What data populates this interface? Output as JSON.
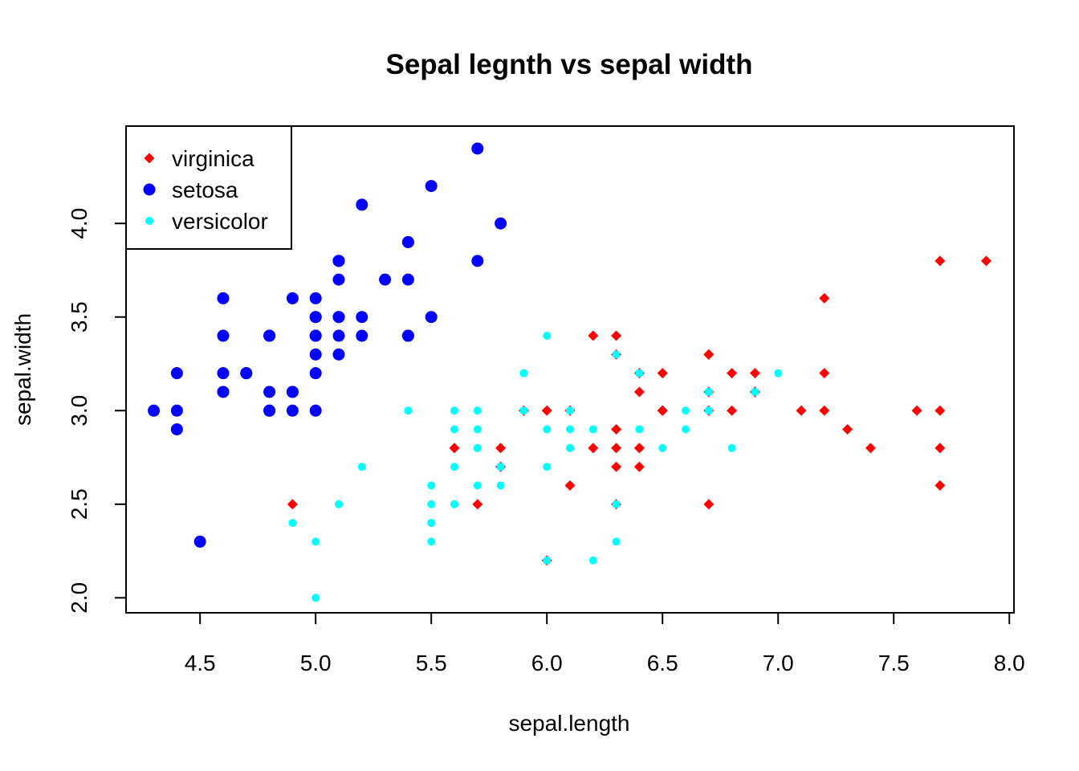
{
  "chart_data": {
    "type": "scatter",
    "title": "Sepal legnth vs sepal width",
    "xlabel": "sepal.length",
    "ylabel": "sepal.width",
    "xlim": [
      4.18,
      8.02
    ],
    "ylim": [
      1.92,
      4.52
    ],
    "x_ticks": [
      "4.5",
      "5.0",
      "5.5",
      "6.0",
      "6.5",
      "7.0",
      "7.5",
      "8.0"
    ],
    "y_ticks": [
      "2.0",
      "2.5",
      "3.0",
      "3.5",
      "4.0"
    ],
    "grid": false,
    "legend_position": "top-left",
    "series": [
      {
        "name": "virginica",
        "color": "#ff0000",
        "marker": "diamond",
        "points": [
          [
            6.3,
            3.3
          ],
          [
            5.8,
            2.7
          ],
          [
            7.1,
            3.0
          ],
          [
            6.3,
            2.9
          ],
          [
            6.5,
            3.0
          ],
          [
            7.6,
            3.0
          ],
          [
            4.9,
            2.5
          ],
          [
            7.3,
            2.9
          ],
          [
            6.7,
            2.5
          ],
          [
            7.2,
            3.6
          ],
          [
            6.5,
            3.2
          ],
          [
            6.4,
            2.7
          ],
          [
            6.8,
            3.0
          ],
          [
            5.7,
            2.5
          ],
          [
            5.8,
            2.8
          ],
          [
            6.4,
            3.2
          ],
          [
            6.5,
            3.0
          ],
          [
            7.7,
            3.8
          ],
          [
            7.7,
            2.6
          ],
          [
            6.0,
            2.2
          ],
          [
            6.9,
            3.2
          ],
          [
            5.6,
            2.8
          ],
          [
            7.7,
            2.8
          ],
          [
            6.3,
            2.7
          ],
          [
            6.7,
            3.3
          ],
          [
            7.2,
            3.2
          ],
          [
            6.2,
            2.8
          ],
          [
            6.1,
            3.0
          ],
          [
            6.4,
            2.8
          ],
          [
            7.2,
            3.0
          ],
          [
            7.4,
            2.8
          ],
          [
            7.9,
            3.8
          ],
          [
            6.4,
            2.8
          ],
          [
            6.3,
            2.8
          ],
          [
            6.1,
            2.6
          ],
          [
            7.7,
            3.0
          ],
          [
            6.3,
            3.4
          ],
          [
            6.4,
            3.1
          ],
          [
            6.0,
            3.0
          ],
          [
            6.9,
            3.1
          ],
          [
            6.7,
            3.1
          ],
          [
            6.9,
            3.1
          ],
          [
            5.8,
            2.7
          ],
          [
            6.8,
            3.2
          ],
          [
            6.7,
            3.3
          ],
          [
            6.7,
            3.0
          ],
          [
            6.3,
            2.5
          ],
          [
            6.5,
            3.0
          ],
          [
            6.2,
            3.4
          ],
          [
            5.9,
            3.0
          ]
        ]
      },
      {
        "name": "setosa",
        "color": "#0000ff",
        "marker": "circle",
        "points": [
          [
            5.1,
            3.5
          ],
          [
            4.9,
            3.0
          ],
          [
            4.7,
            3.2
          ],
          [
            4.6,
            3.1
          ],
          [
            5.0,
            3.6
          ],
          [
            5.4,
            3.9
          ],
          [
            4.6,
            3.4
          ],
          [
            5.0,
            3.4
          ],
          [
            4.4,
            2.9
          ],
          [
            4.9,
            3.1
          ],
          [
            5.4,
            3.7
          ],
          [
            4.8,
            3.4
          ],
          [
            4.8,
            3.0
          ],
          [
            4.3,
            3.0
          ],
          [
            5.8,
            4.0
          ],
          [
            5.7,
            4.4
          ],
          [
            5.4,
            3.9
          ],
          [
            5.1,
            3.5
          ],
          [
            5.7,
            3.8
          ],
          [
            5.1,
            3.8
          ],
          [
            5.4,
            3.4
          ],
          [
            5.1,
            3.7
          ],
          [
            4.6,
            3.6
          ],
          [
            5.1,
            3.3
          ],
          [
            4.8,
            3.4
          ],
          [
            5.0,
            3.0
          ],
          [
            5.0,
            3.4
          ],
          [
            5.2,
            3.5
          ],
          [
            5.2,
            3.4
          ],
          [
            4.7,
            3.2
          ],
          [
            4.8,
            3.1
          ],
          [
            5.4,
            3.4
          ],
          [
            5.2,
            4.1
          ],
          [
            5.5,
            4.2
          ],
          [
            4.9,
            3.1
          ],
          [
            5.0,
            3.2
          ],
          [
            5.5,
            3.5
          ],
          [
            4.9,
            3.6
          ],
          [
            4.4,
            3.0
          ],
          [
            5.1,
            3.4
          ],
          [
            5.0,
            3.5
          ],
          [
            4.5,
            2.3
          ],
          [
            4.4,
            3.2
          ],
          [
            5.0,
            3.5
          ],
          [
            5.1,
            3.8
          ],
          [
            4.8,
            3.0
          ],
          [
            5.1,
            3.8
          ],
          [
            4.6,
            3.2
          ],
          [
            5.3,
            3.7
          ],
          [
            5.0,
            3.3
          ]
        ]
      },
      {
        "name": "versicolor",
        "color": "#00ffff",
        "marker": "circle-small",
        "points": [
          [
            7.0,
            3.2
          ],
          [
            6.4,
            3.2
          ],
          [
            6.9,
            3.1
          ],
          [
            5.5,
            2.3
          ],
          [
            6.5,
            2.8
          ],
          [
            5.7,
            2.8
          ],
          [
            6.3,
            3.3
          ],
          [
            4.9,
            2.4
          ],
          [
            6.6,
            2.9
          ],
          [
            5.2,
            2.7
          ],
          [
            5.0,
            2.0
          ],
          [
            5.9,
            3.0
          ],
          [
            6.0,
            2.2
          ],
          [
            6.1,
            2.9
          ],
          [
            5.6,
            2.9
          ],
          [
            6.7,
            3.1
          ],
          [
            5.6,
            3.0
          ],
          [
            5.8,
            2.7
          ],
          [
            6.2,
            2.2
          ],
          [
            5.6,
            2.5
          ],
          [
            5.9,
            3.2
          ],
          [
            6.1,
            2.8
          ],
          [
            6.3,
            2.5
          ],
          [
            6.1,
            2.8
          ],
          [
            6.4,
            2.9
          ],
          [
            6.6,
            3.0
          ],
          [
            6.8,
            2.8
          ],
          [
            6.7,
            3.0
          ],
          [
            6.0,
            2.9
          ],
          [
            5.7,
            2.6
          ],
          [
            5.5,
            2.4
          ],
          [
            5.5,
            2.4
          ],
          [
            5.8,
            2.7
          ],
          [
            6.0,
            2.7
          ],
          [
            5.4,
            3.0
          ],
          [
            6.0,
            3.4
          ],
          [
            6.7,
            3.1
          ],
          [
            6.3,
            2.3
          ],
          [
            5.6,
            3.0
          ],
          [
            5.5,
            2.5
          ],
          [
            5.5,
            2.6
          ],
          [
            6.1,
            3.0
          ],
          [
            5.8,
            2.6
          ],
          [
            5.0,
            2.3
          ],
          [
            5.6,
            2.7
          ],
          [
            5.7,
            3.0
          ],
          [
            5.7,
            2.9
          ],
          [
            6.2,
            2.9
          ],
          [
            5.1,
            2.5
          ],
          [
            5.7,
            2.8
          ]
        ]
      }
    ]
  }
}
